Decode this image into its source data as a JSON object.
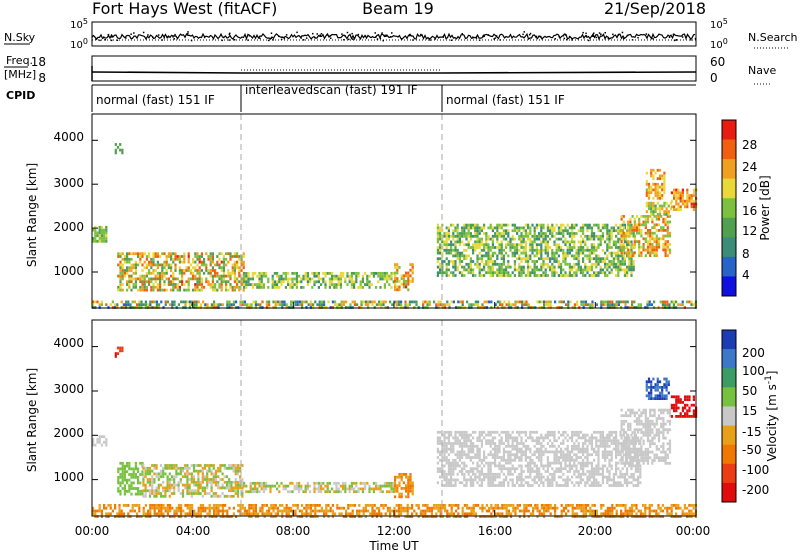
{
  "header": {
    "station": "Fort Hays West (fitACF)",
    "beam": "Beam 19",
    "date": "21/Sep/2018"
  },
  "top_panels": {
    "nsky_label": "N.Sky",
    "nsky_ticks": [
      "10^5",
      "10^0"
    ],
    "nsearch_label": "N.Search",
    "nsearch_ticks": [
      "10^5",
      "10^0"
    ],
    "freq_label": "Freq.",
    "freq_unit": "[MHz]",
    "freq_ticks": [
      "18",
      "8"
    ],
    "nave_label": "Nave",
    "nave_ticks": [
      "60",
      "0"
    ],
    "cpid_label": "CPID",
    "cpid_segments": [
      {
        "label": "normal (fast) 151 IF",
        "start_h": 0,
        "end_h": 6
      },
      {
        "label": "interleavedscan (fast) 191 IF",
        "start_h": 6,
        "end_h": 14
      },
      {
        "label": "normal (fast) 151 IF",
        "start_h": 14,
        "end_h": 24
      }
    ]
  },
  "chart_data": [
    {
      "type": "heatmap",
      "title": "",
      "xlabel": "",
      "ylabel": "Slant Range [km]",
      "xlim": [
        0,
        24
      ],
      "ylim": [
        180,
        4600
      ],
      "yticks": [
        "1000",
        "2000",
        "3000",
        "4000"
      ],
      "colorbar": {
        "label": "Power [dB]",
        "ticks": [
          "4",
          "8",
          "12",
          "16",
          "20",
          "24",
          "28"
        ],
        "range": [
          0,
          30
        ],
        "colors": [
          "#1010e0",
          "#2864c8",
          "#3c8c78",
          "#50a050",
          "#7cc040",
          "#e8d838",
          "#f0a020",
          "#f06010",
          "#e81c10"
        ]
      },
      "patches": [
        {
          "t0": 1.0,
          "t1": 6.0,
          "r0": 600,
          "r1": 1450,
          "v0": 10,
          "v1": 27
        },
        {
          "t0": 6.0,
          "t1": 12.0,
          "r0": 680,
          "r1": 1000,
          "v0": 8,
          "v1": 20
        },
        {
          "t0": 12.0,
          "t1": 12.7,
          "r0": 600,
          "r1": 1200,
          "v0": 14,
          "v1": 27
        },
        {
          "t0": 0.0,
          "t1": 0.6,
          "r0": 1700,
          "r1": 2050,
          "v0": 10,
          "v1": 18
        },
        {
          "t0": 0.9,
          "t1": 1.2,
          "r0": 3700,
          "r1": 4000,
          "v0": 8,
          "v1": 16
        },
        {
          "t0": 13.7,
          "t1": 21.5,
          "r0": 900,
          "r1": 2100,
          "v0": 8,
          "v1": 20
        },
        {
          "t0": 21.0,
          "t1": 23.0,
          "r0": 1400,
          "r1": 2300,
          "v0": 14,
          "v1": 26
        },
        {
          "t0": 22.0,
          "t1": 23.0,
          "r0": 2300,
          "r1": 2600,
          "v0": 12,
          "v1": 22
        },
        {
          "t0": 22.0,
          "t1": 22.7,
          "r0": 2700,
          "r1": 3350,
          "v0": 16,
          "v1": 26
        },
        {
          "t0": 23.0,
          "t1": 24.0,
          "r0": 2400,
          "r1": 2900,
          "v0": 18,
          "v1": 28
        },
        {
          "t0": 0.0,
          "t1": 24.0,
          "r0": 190,
          "r1": 350,
          "v0": 4,
          "v1": 26
        }
      ]
    },
    {
      "type": "heatmap",
      "title": "",
      "xlabel": "Time UT",
      "ylabel": "Slant Range [km]",
      "xlim": [
        0,
        24
      ],
      "ylim": [
        180,
        4600
      ],
      "xticks": [
        "00:00",
        "04:00",
        "08:00",
        "12:00",
        "16:00",
        "20:00",
        "00:00"
      ],
      "yticks": [
        "1000",
        "2000",
        "3000",
        "4000"
      ],
      "colorbar": {
        "label": "Velocity [m s^-1]",
        "ticks": [
          "200",
          "100",
          "50",
          "15",
          "-15",
          "-50",
          "-100",
          "-200"
        ],
        "colors": [
          "#1c3cb4",
          "#3c78c8",
          "#3c9c64",
          "#78c040",
          "#c8c8c8",
          "#e8a018",
          "#f07800",
          "#ec3c14",
          "#e00c0c"
        ]
      },
      "patches": [
        {
          "t0": 1.0,
          "t1": 2.0,
          "r0": 700,
          "r1": 1400,
          "c": [
            3,
            3
          ]
        },
        {
          "t0": 2.0,
          "t1": 6.0,
          "r0": 650,
          "r1": 1350,
          "c": [
            3,
            5
          ]
        },
        {
          "t0": 6.0,
          "t1": 12.0,
          "r0": 700,
          "r1": 950,
          "c": [
            3,
            5
          ]
        },
        {
          "t0": 12.0,
          "t1": 12.7,
          "r0": 620,
          "r1": 1150,
          "c": [
            5,
            6
          ]
        },
        {
          "t0": 0.0,
          "t1": 0.6,
          "r0": 1750,
          "r1": 2000,
          "c": [
            4,
            4
          ]
        },
        {
          "t0": 0.9,
          "t1": 1.2,
          "r0": 3750,
          "r1": 4000,
          "c": [
            7,
            8
          ]
        },
        {
          "t0": 13.7,
          "t1": 21.8,
          "r0": 900,
          "r1": 2100,
          "c": [
            4,
            4
          ]
        },
        {
          "t0": 21.0,
          "t1": 23.0,
          "r0": 1400,
          "r1": 2600,
          "c": [
            4,
            4
          ]
        },
        {
          "t0": 22.0,
          "t1": 22.9,
          "r0": 2800,
          "r1": 3300,
          "c": [
            0,
            1
          ]
        },
        {
          "t0": 23.0,
          "t1": 24.0,
          "r0": 2400,
          "r1": 2900,
          "c": [
            8,
            8
          ]
        },
        {
          "t0": 0.0,
          "t1": 24.0,
          "r0": 190,
          "r1": 450,
          "c": [
            5,
            6
          ]
        }
      ]
    }
  ]
}
